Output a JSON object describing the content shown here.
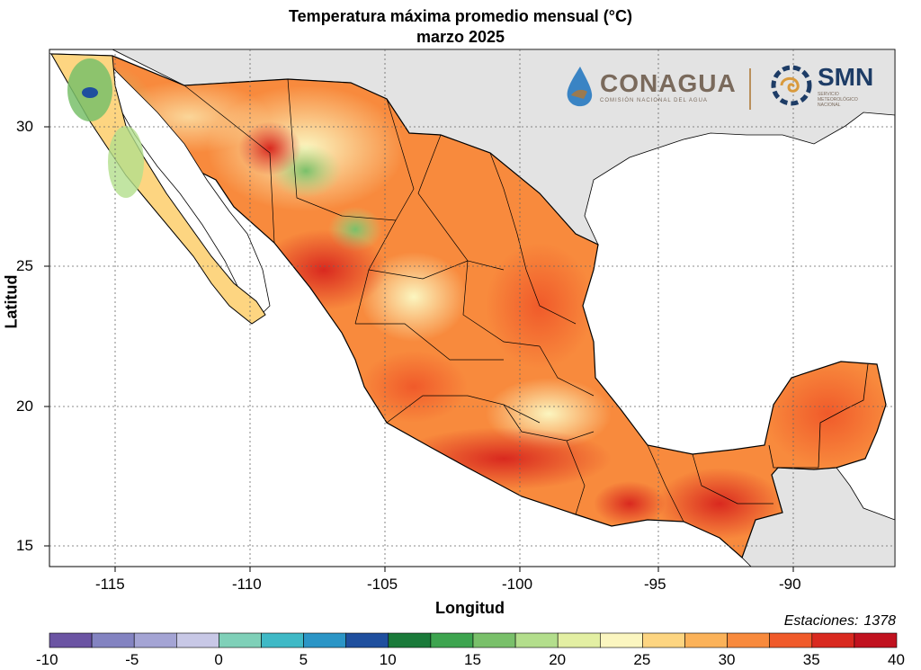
{
  "title": "Temperatura máxima promedio mensual (°C)",
  "subtitle": "marzo 2025",
  "xlabel": "Longitud",
  "ylabel": "Latitud",
  "x_ticks": [
    "-115",
    "-110",
    "-105",
    "-100",
    "-95",
    "-90"
  ],
  "y_ticks": [
    "30",
    "25",
    "20",
    "15"
  ],
  "stations_label": "Estaciones:",
  "stations_count": "1378",
  "logos": {
    "conagua": "CONAGUA",
    "conagua_sub": "COMISIÓN NACIONAL DEL AGUA",
    "smn": "SMN",
    "smn_sub": "SERVICIO METEOROLÓGICO NACIONAL"
  },
  "colorbar": {
    "ticks": [
      "-10",
      "-5",
      "0",
      "5",
      "10",
      "15",
      "20",
      "25",
      "30",
      "35",
      "40"
    ],
    "colors": [
      "#6b54a3",
      "#8383c1",
      "#a4a4d4",
      "#c8c8e6",
      "#7fd0b8",
      "#3fb9c6",
      "#2b95c6",
      "#1f4f9e",
      "#1a7a3a",
      "#3da44f",
      "#79c06a",
      "#b3de8c",
      "#e3efa3",
      "#fbf6c0",
      "#fdd581",
      "#fbb259",
      "#f88a3d",
      "#f05a2a",
      "#d9291f",
      "#c1121f"
    ]
  },
  "axis_ranges": {
    "lon": [
      -117.5,
      -86.7
    ],
    "lat": [
      14.3,
      32.8
    ]
  }
}
